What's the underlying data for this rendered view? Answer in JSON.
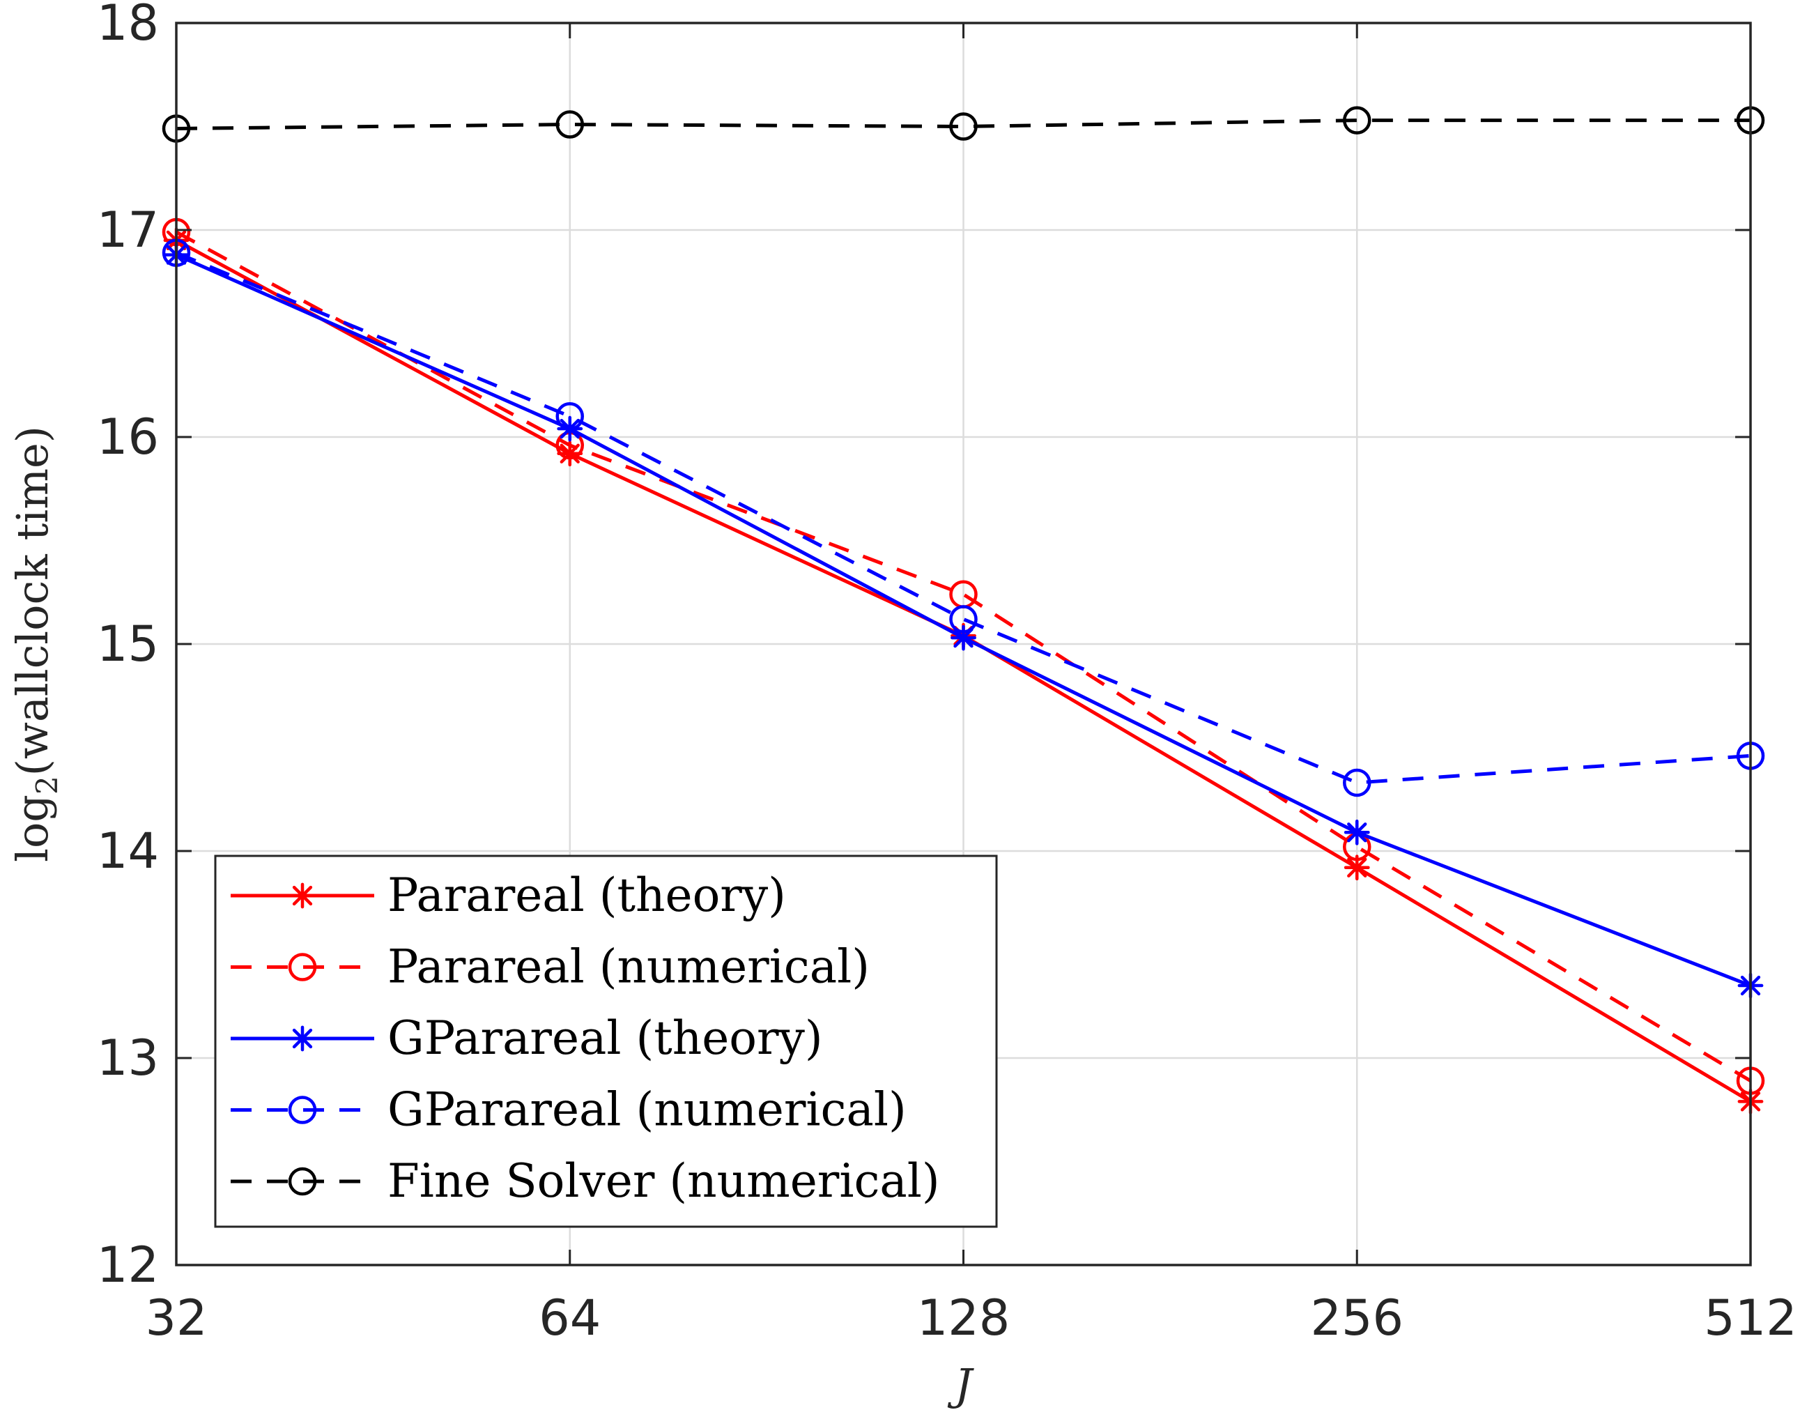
{
  "chart_data": {
    "type": "line",
    "title": "",
    "xlabel": "J",
    "ylabel_parts": {
      "pre": "log",
      "sub": "2",
      "post": "(wallclock time)"
    },
    "x": [
      32,
      64,
      128,
      256,
      512
    ],
    "x_scale": "log2",
    "xticks": [
      "32",
      "64",
      "128",
      "256",
      "512"
    ],
    "ylim": [
      12,
      18
    ],
    "yticks": [
      "12",
      "13",
      "14",
      "15",
      "16",
      "17",
      "18"
    ],
    "grid": true,
    "legend_position": "bottom-left",
    "series": [
      {
        "name": "Parareal (theory)",
        "color": "#ff0000",
        "dash": "solid",
        "marker": "asterisk",
        "values": [
          16.95,
          15.92,
          15.04,
          13.92,
          12.79
        ]
      },
      {
        "name": "Parareal (numerical)",
        "color": "#ff0000",
        "dash": "dashed",
        "marker": "circle",
        "values": [
          16.99,
          15.96,
          15.24,
          14.02,
          12.89
        ]
      },
      {
        "name": "GParareal (theory)",
        "color": "#0000ff",
        "dash": "solid",
        "marker": "asterisk",
        "values": [
          16.88,
          16.04,
          15.03,
          14.09,
          13.35
        ]
      },
      {
        "name": "GParareal (numerical)",
        "color": "#0000ff",
        "dash": "dashed",
        "marker": "circle",
        "values": [
          16.89,
          16.1,
          15.12,
          14.33,
          14.46
        ]
      },
      {
        "name": "Fine Solver (numerical)",
        "color": "#000000",
        "dash": "dashed",
        "marker": "circle",
        "values": [
          17.49,
          17.51,
          17.5,
          17.53,
          17.53
        ]
      }
    ]
  }
}
